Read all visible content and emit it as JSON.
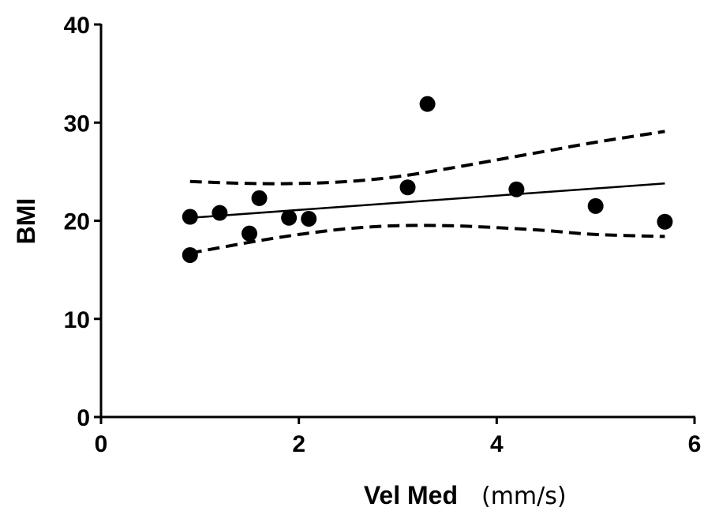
{
  "chart_data": {
    "type": "scatter",
    "xlabel": "Vel Med",
    "xlabel_unit": "(mm/s)",
    "ylabel": "BMI",
    "xlim": [
      0,
      6
    ],
    "ylim": [
      0,
      40
    ],
    "xticks": [
      "0",
      "2",
      "4",
      "6"
    ],
    "yticks": [
      "0",
      "10",
      "20",
      "30",
      "40"
    ],
    "grid": false,
    "legend": "none",
    "point_color": "#000000",
    "points": [
      {
        "x": 0.9,
        "y": 20.4
      },
      {
        "x": 0.9,
        "y": 16.5
      },
      {
        "x": 1.2,
        "y": 20.8
      },
      {
        "x": 1.5,
        "y": 18.7
      },
      {
        "x": 1.6,
        "y": 22.3
      },
      {
        "x": 1.9,
        "y": 20.3
      },
      {
        "x": 2.1,
        "y": 20.2
      },
      {
        "x": 3.1,
        "y": 23.4
      },
      {
        "x": 3.3,
        "y": 31.9
      },
      {
        "x": 4.2,
        "y": 23.2
      },
      {
        "x": 5.0,
        "y": 21.5
      },
      {
        "x": 5.7,
        "y": 19.9
      }
    ],
    "regression_line": {
      "style": "solid",
      "x": [
        0.9,
        5.7
      ],
      "y": [
        20.3,
        23.8
      ]
    },
    "confidence_band_upper": {
      "style": "dashed",
      "x": [
        0.9,
        1.5,
        2.0,
        2.5,
        3.0,
        3.5,
        4.0,
        4.5,
        5.0,
        5.7
      ],
      "y": [
        24.0,
        23.8,
        23.8,
        24.0,
        24.5,
        25.3,
        26.2,
        27.1,
        28.0,
        29.1
      ]
    },
    "confidence_band_lower": {
      "style": "dashed",
      "x": [
        0.9,
        1.5,
        2.0,
        2.5,
        3.0,
        3.5,
        4.0,
        4.5,
        5.0,
        5.7
      ],
      "y": [
        16.7,
        17.8,
        18.6,
        19.2,
        19.5,
        19.5,
        19.3,
        19.0,
        18.6,
        18.4
      ]
    }
  }
}
